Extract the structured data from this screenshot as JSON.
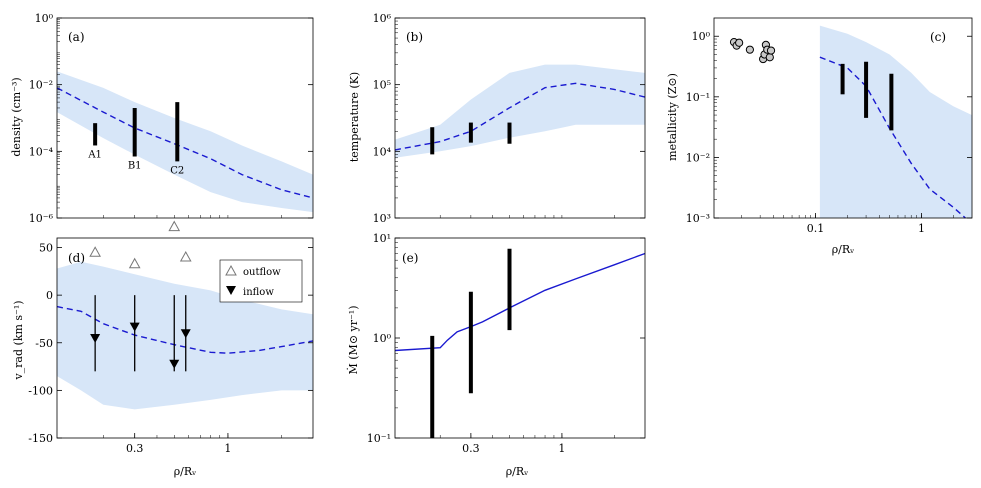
{
  "chart_data": [
    {
      "id": "a",
      "type": "line",
      "panel_label": "(a)",
      "ylabel": "density (cm⁻³)",
      "xlabel": "",
      "xscale": "log",
      "yscale": "log",
      "xlim": [
        0.11,
        3.0
      ],
      "ylim": [
        1e-06,
        1
      ],
      "yticks": [
        {
          "v": 1,
          "label": "10⁰"
        },
        {
          "v": 0.01,
          "label": "10⁻²"
        },
        {
          "v": 0.0001,
          "label": "10⁻⁴"
        },
        {
          "v": 1e-06,
          "label": "10⁻⁶"
        }
      ],
      "xticks": [],
      "model": {
        "x": [
          0.11,
          0.2,
          0.3,
          0.5,
          0.8,
          1.2,
          2.0,
          3.0
        ],
        "y": [
          0.008,
          0.0015,
          0.0005,
          0.00017,
          6e-05,
          2e-05,
          7e-06,
          4e-06
        ]
      },
      "band": {
        "x": [
          0.11,
          0.2,
          0.3,
          0.5,
          0.8,
          1.2,
          2.0,
          3.0
        ],
        "lo": [
          0.0015,
          0.00025,
          8e-05,
          2e-05,
          6e-06,
          3e-06,
          2e-06,
          1.5e-06
        ],
        "hi": [
          0.025,
          0.008,
          0.003,
          0.001,
          0.0004,
          0.00015,
          5e-05,
          2e-05
        ]
      },
      "errorbars": [
        {
          "x": 0.18,
          "lo": 0.00015,
          "hi": 0.0007,
          "label": "A1"
        },
        {
          "x": 0.3,
          "lo": 7e-05,
          "hi": 0.002,
          "label": "B1"
        },
        {
          "x": 0.52,
          "lo": 5e-05,
          "hi": 0.003,
          "label": "C2"
        }
      ]
    },
    {
      "id": "b",
      "type": "line",
      "panel_label": "(b)",
      "ylabel": "temperature (K)",
      "xlabel": "",
      "xscale": "log",
      "yscale": "log",
      "xlim": [
        0.11,
        3.0
      ],
      "ylim": [
        1000,
        1000000
      ],
      "yticks": [
        {
          "v": 1000000,
          "label": "10⁶"
        },
        {
          "v": 100000,
          "label": "10⁵"
        },
        {
          "v": 10000,
          "label": "10⁴"
        },
        {
          "v": 1000,
          "label": "10³"
        }
      ],
      "xticks": [],
      "model": {
        "x": [
          0.11,
          0.2,
          0.3,
          0.5,
          0.8,
          1.2,
          2.0,
          3.0
        ],
        "y": [
          10500,
          14000,
          20000,
          45000,
          90000,
          105000,
          85000,
          65000
        ]
      },
      "band": {
        "x": [
          0.11,
          0.2,
          0.3,
          0.5,
          0.8,
          1.2,
          2.0,
          3.0
        ],
        "lo": [
          8000,
          10000,
          12000,
          16000,
          20000,
          25000,
          25000,
          25000
        ],
        "hi": [
          15000,
          25000,
          60000,
          150000,
          200000,
          200000,
          170000,
          150000
        ]
      },
      "errorbars": [
        {
          "x": 0.18,
          "lo": 9000,
          "hi": 23000
        },
        {
          "x": 0.3,
          "lo": 13500,
          "hi": 27000
        },
        {
          "x": 0.5,
          "lo": 13000,
          "hi": 27000
        }
      ]
    },
    {
      "id": "c",
      "type": "scatter",
      "panel_label": "(c)",
      "ylabel": "metallicity (Z⊙)",
      "xlabel": "ρ/Rᵥ",
      "xscale": "log",
      "yscale": "log",
      "xlim": [
        0.011,
        3.0
      ],
      "ylim": [
        0.001,
        2
      ],
      "yticks": [
        {
          "v": 1,
          "label": "10⁰"
        },
        {
          "v": 0.1,
          "label": "10⁻¹"
        },
        {
          "v": 0.01,
          "label": "10⁻²"
        },
        {
          "v": 0.001,
          "label": "10⁻³"
        }
      ],
      "xticks": [
        {
          "v": 0.1,
          "label": "0.1"
        },
        {
          "v": 1,
          "label": "1"
        }
      ],
      "model": {
        "x": [
          0.11,
          0.2,
          0.3,
          0.5,
          0.8,
          1.2,
          2.0,
          2.6
        ],
        "y": [
          0.45,
          0.3,
          0.15,
          0.03,
          0.008,
          0.003,
          0.0015,
          0.001
        ]
      },
      "band": {
        "x": [
          0.11,
          0.2,
          0.3,
          0.5,
          0.8,
          1.2,
          2.0,
          3.0
        ],
        "lo": [
          0.001,
          0.001,
          0.001,
          0.001,
          0.001,
          0.001,
          0.001,
          0.001
        ],
        "hi": [
          1.5,
          1.1,
          0.8,
          0.5,
          0.25,
          0.12,
          0.07,
          0.05
        ]
      },
      "points": {
        "x": [
          0.017,
          0.018,
          0.019,
          0.024,
          0.032,
          0.033,
          0.034,
          0.035,
          0.037,
          0.038
        ],
        "y": [
          0.8,
          0.7,
          0.78,
          0.6,
          0.42,
          0.5,
          0.72,
          0.6,
          0.45,
          0.58
        ]
      },
      "errorbars": [
        {
          "x": 0.18,
          "lo": 0.11,
          "hi": 0.35
        },
        {
          "x": 0.3,
          "lo": 0.045,
          "hi": 0.38
        },
        {
          "x": 0.52,
          "lo": 0.028,
          "hi": 0.24
        }
      ]
    },
    {
      "id": "d",
      "type": "line",
      "panel_label": "(d)",
      "ylabel": "v_rad (km s⁻¹)",
      "xlabel": "ρ/Rᵥ",
      "xscale": "log",
      "yscale": "linear",
      "xlim": [
        0.11,
        3.0
      ],
      "ylim": [
        -150,
        60
      ],
      "yticks": [
        {
          "v": 50,
          "label": "50"
        },
        {
          "v": 0,
          "label": "0"
        },
        {
          "v": -50,
          "label": "-50"
        },
        {
          "v": -100,
          "label": "-100"
        },
        {
          "v": -150,
          "label": "-150"
        }
      ],
      "xticks": [
        {
          "v": 0.3,
          "label": "0.3"
        },
        {
          "v": 1,
          "label": "1"
        }
      ],
      "model": {
        "x": [
          0.11,
          0.15,
          0.2,
          0.3,
          0.5,
          0.8,
          1.0,
          1.5,
          2.0,
          3.0
        ],
        "y": [
          -12,
          -17,
          -30,
          -42,
          -52,
          -60,
          -61,
          -58,
          -54,
          -48
        ]
      },
      "band": {
        "x": [
          0.11,
          0.15,
          0.2,
          0.3,
          0.5,
          0.8,
          1.2,
          2.0,
          3.0
        ],
        "lo": [
          -85,
          -100,
          -115,
          -120,
          -115,
          -110,
          -105,
          -100,
          -100
        ],
        "hi": [
          28,
          35,
          30,
          22,
          12,
          5,
          -5,
          -15,
          -20
        ]
      },
      "outflow": {
        "x": [
          0.18,
          0.3,
          0.5,
          0.58
        ],
        "y": [
          45,
          33,
          72,
          40
        ]
      },
      "inflow": {
        "x": [
          0.18,
          0.3,
          0.5,
          0.58
        ],
        "y": [
          -45,
          -33,
          -72,
          -40
        ],
        "lo": [
          -80,
          -80,
          -80,
          -80
        ],
        "hi": [
          0,
          0,
          0,
          0
        ]
      },
      "legend": {
        "placement": "top-right",
        "entries": [
          "outflow",
          "inflow"
        ]
      }
    },
    {
      "id": "e",
      "type": "line",
      "panel_label": "(e)",
      "ylabel": "Ṁ (M⊙ yr⁻¹)",
      "xlabel": "ρ/Rᵥ",
      "xscale": "log",
      "yscale": "log",
      "xlim": [
        0.11,
        3.0
      ],
      "ylim": [
        0.1,
        10
      ],
      "yticks": [
        {
          "v": 10,
          "label": "10¹"
        },
        {
          "v": 1,
          "label": "10⁰"
        },
        {
          "v": 0.1,
          "label": "10⁻¹"
        }
      ],
      "xticks": [
        {
          "v": 0.3,
          "label": "0.3"
        },
        {
          "v": 1,
          "label": "1"
        }
      ],
      "model": {
        "x": [
          0.11,
          0.2,
          0.22,
          0.25,
          0.3,
          0.35,
          0.5,
          0.8,
          1.2,
          2.0,
          3.0
        ],
        "y": [
          0.75,
          0.8,
          0.95,
          1.15,
          1.3,
          1.45,
          2.0,
          3.0,
          3.9,
          5.4,
          7.0
        ]
      },
      "errorbars": [
        {
          "x": 0.18,
          "lo": 0.1,
          "hi": 1.05
        },
        {
          "x": 0.3,
          "lo": 0.28,
          "hi": 2.9
        },
        {
          "x": 0.5,
          "lo": 1.2,
          "hi": 7.8
        }
      ]
    }
  ]
}
